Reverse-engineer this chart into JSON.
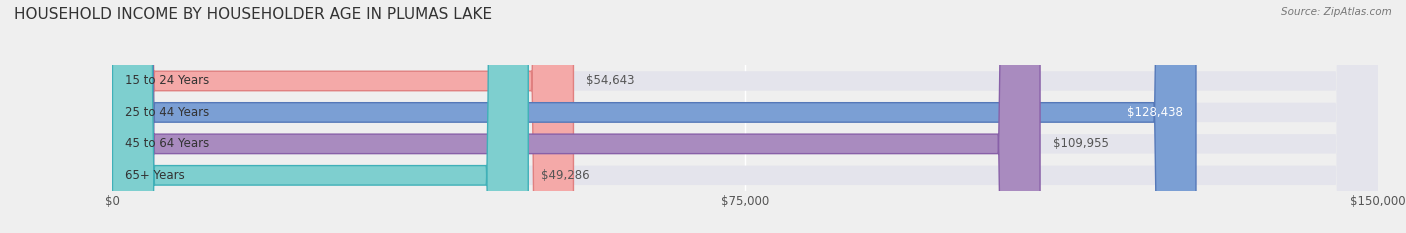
{
  "title": "HOUSEHOLD INCOME BY HOUSEHOLDER AGE IN PLUMAS LAKE",
  "source": "Source: ZipAtlas.com",
  "categories": [
    "15 to 24 Years",
    "25 to 44 Years",
    "45 to 64 Years",
    "65+ Years"
  ],
  "values": [
    54643,
    128438,
    109955,
    49286
  ],
  "bar_colors": [
    "#f4a9a8",
    "#7b9fd4",
    "#a98bbf",
    "#7ecfcf"
  ],
  "bar_edge_colors": [
    "#e08080",
    "#5578b8",
    "#8860a8",
    "#40b0b8"
  ],
  "background_color": "#efefef",
  "bar_bg_color": "#e4e4ec",
  "xlim": [
    0,
    150000
  ],
  "xticks": [
    0,
    75000,
    150000
  ],
  "xtick_labels": [
    "$0",
    "$75,000",
    "$150,000"
  ],
  "title_fontsize": 11,
  "label_fontsize": 8.5,
  "value_fontsize": 8.5,
  "bar_height": 0.62,
  "figsize": [
    14.06,
    2.33
  ],
  "dpi": 100
}
